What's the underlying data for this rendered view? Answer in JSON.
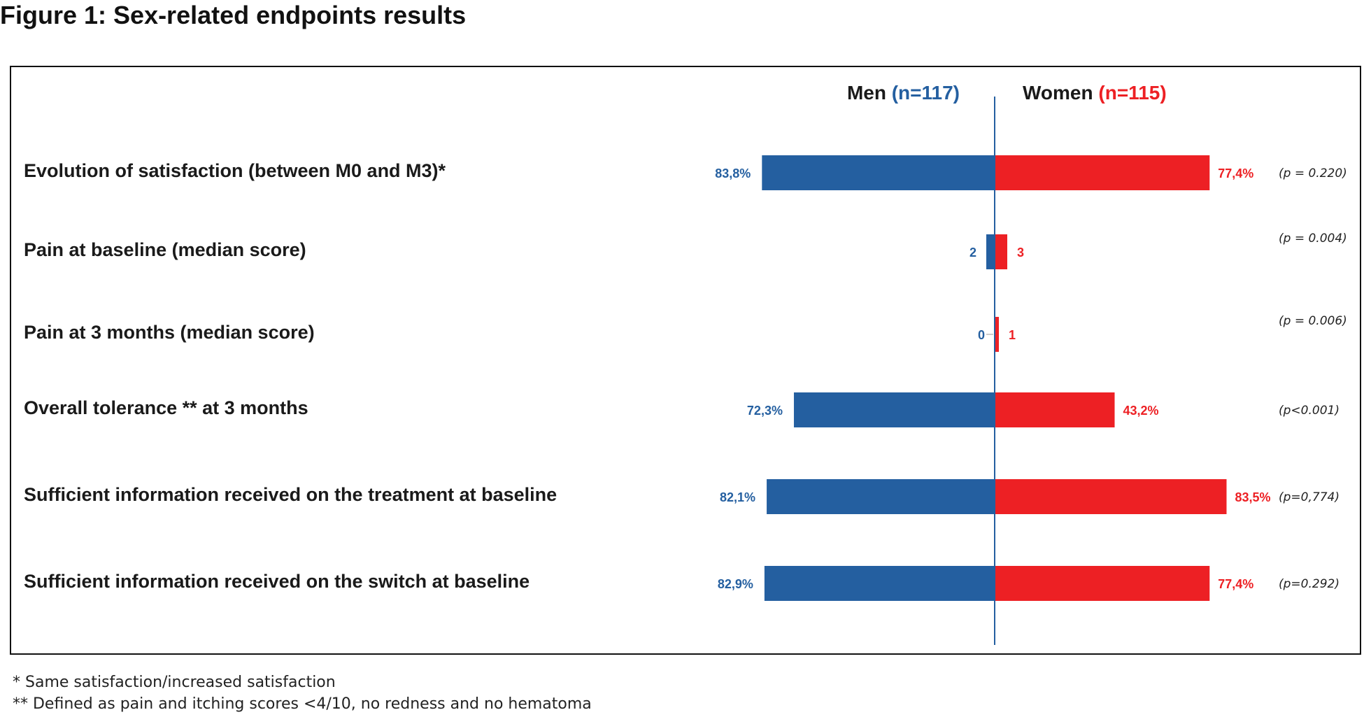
{
  "figure": {
    "title": "Figure 1: Sex-related endpoints results"
  },
  "colors": {
    "men": "#245fa0",
    "women": "#ed2024",
    "text": "#1a1a1a",
    "axis": "#245fa0"
  },
  "chart_data": {
    "type": "bar",
    "orientation": "horizontal-diverging",
    "title": "",
    "xlabel": "",
    "ylabel": "",
    "grid": false,
    "legend": "top-center",
    "headers": {
      "men_label": "Men",
      "men_n": "(n=117)",
      "women_label": "Women",
      "women_n": "(n=115)"
    },
    "categories": [
      "Evolution of satisfaction (between M0 and M3)*",
      "Pain at baseline (median score)",
      "Pain at 3 months (median score)",
      "Overall tolerance ** at 3 months",
      "Sufficient information received on the treatment at baseline",
      "Sufficient information received on the switch at baseline"
    ],
    "series": [
      {
        "name": "Men",
        "values": [
          83.8,
          2,
          0,
          72.3,
          82.1,
          82.9
        ],
        "labels": [
          "83,8%",
          "2",
          "0",
          "72,3%",
          "82,1%",
          "82,9%"
        ]
      },
      {
        "name": "Women",
        "values": [
          77.4,
          3,
          1,
          43.2,
          83.5,
          77.4
        ],
        "labels": [
          "77,4%",
          "3",
          "1",
          "43,2%",
          "83,5%",
          "77,4%"
        ]
      }
    ],
    "p_values": [
      "(p = 0.220)",
      "(p = 0.004)",
      "(p = 0.006)",
      "(p<0.001)",
      "(p=0,774)",
      "(p=0.292)"
    ]
  },
  "footnotes": [
    "* Same satisfaction/increased satisfaction",
    "** Defined as pain and itching scores <4/10, no redness and no hematoma"
  ]
}
